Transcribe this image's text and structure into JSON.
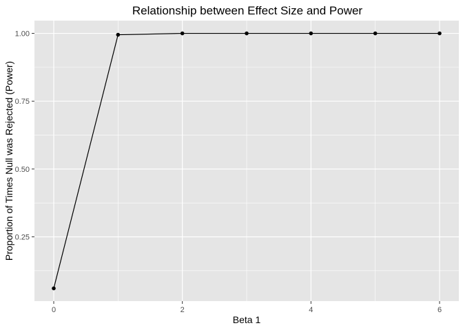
{
  "chart_data": {
    "type": "line",
    "title": "Relationship between Effect Size and Power",
    "xlabel": "Beta 1",
    "ylabel": "Proportion of Times Null was Rejected (Power)",
    "x": [
      0,
      1,
      2,
      3,
      4,
      5,
      6
    ],
    "y": [
      0.06,
      0.995,
      1.0,
      1.0,
      1.0,
      1.0,
      1.0
    ],
    "xlim": [
      -0.3,
      6.3
    ],
    "ylim": [
      0.013,
      1.047
    ],
    "xticks": [
      0,
      2,
      4,
      6
    ],
    "xtick_labels": [
      "0",
      "2",
      "4",
      "6"
    ],
    "yticks": [
      0.25,
      0.5,
      0.75,
      1.0
    ],
    "ytick_labels": [
      "0.25",
      "0.50",
      "0.75",
      "1.00"
    ],
    "grid": true,
    "colors": {
      "panel": "#e5e5e5",
      "grid": "#ffffff",
      "line": "#000000",
      "point": "#000000"
    }
  }
}
